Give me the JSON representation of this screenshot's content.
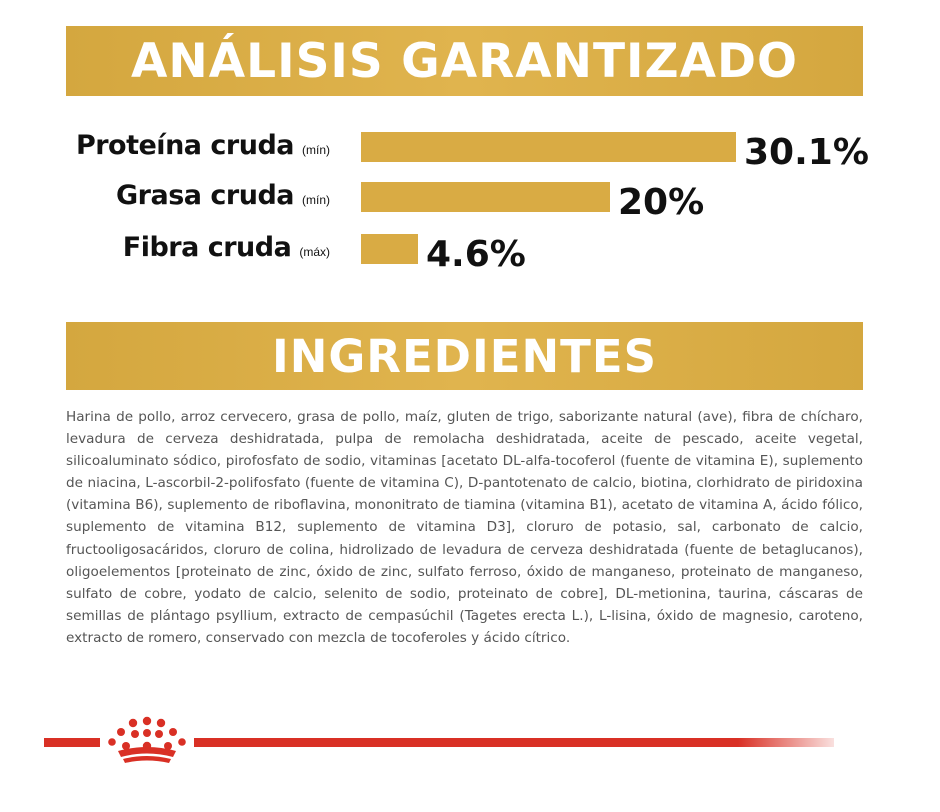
{
  "analisis": {
    "title": "ANÁLISIS GARANTIZADO",
    "rows": [
      {
        "label": "Proteína cruda",
        "unit": "(mín)",
        "value": "30.1%",
        "percent": 30.1
      },
      {
        "label": "Grasa cruda",
        "unit": "(mín)",
        "value": "20%",
        "percent": 20
      },
      {
        "label": "Fibra cruda",
        "unit": "(máx)",
        "value": "4.6%",
        "percent": 4.6
      }
    ]
  },
  "ingredientes": {
    "title": "INGREDIENTES",
    "text": "Harina de pollo, arroz cervecero, grasa de pollo, maíz, gluten de trigo, saborizante natural (ave), fibra de chícharo, levadura de cerveza deshidratada, pulpa de remolacha deshidratada, aceite de pescado, aceite vegetal, silicoaluminato sódico, pirofosfato de sodio, vitaminas [acetato DL-alfa-tocoferol (fuente de vitamina E), suplemento de niacina, L-ascorbil-2-polifosfato (fuente de vitamina C), D-pantotenato de calcio, biotina, clorhidrato de piridoxina (vitamina B6), suplemento de riboflavina, mononitrato de tiamina (vitamina B1), acetato de vitamina A, ácido fólico, suplemento de vitamina B12, suplemento de vitamina D3], cloruro de potasio, sal, carbonato de calcio, fructooligosacáridos, cloruro de colina, hidrolizado de levadura de cerveza deshidratada (fuente de betaglucanos), oligoelementos [proteinato de zinc, óxido de zinc, sulfato ferroso, óxido de manganeso, proteinato de manganeso, sulfato de cobre, yodato de calcio, selenito de sodio, proteinato de cobre], DL-metionina, taurina, cáscaras de semillas de plántago psyllium, extracto de cempasúchil (Tagetes erecta L.), L-lisina, óxido de magnesio, caroteno, extracto de romero, conservado con mezcla de tocoferoles y ácido cítrico."
  },
  "footer": {
    "logo_icon": "royal-crown-icon",
    "accent_color": "#d93025",
    "gold_color": "#d9ab44"
  }
}
